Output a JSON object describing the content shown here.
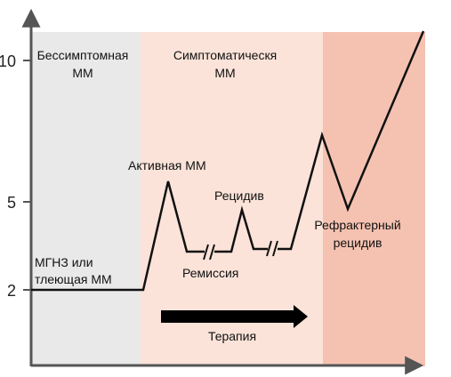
{
  "phases": [
    {
      "line1": "Бессимптомная",
      "line2": "ММ",
      "color": "#e9e9e9"
    },
    {
      "line1": "Симптоматическя",
      "line2": "ММ",
      "color": "#fbe3d9"
    },
    {
      "line1": "",
      "line2": "",
      "color": "#f5c2b1"
    }
  ],
  "y_ticks": [
    "10",
    "5",
    "2"
  ],
  "labels": {
    "mgus_line1": "МГНЗ или",
    "mgus_line2": "тлеющая ММ",
    "active": "Активная ММ",
    "remission": "Ремиссия",
    "relapse": "Рецидив",
    "refractory_line1": "Рефрактерный",
    "refractory_line2": "рецидив",
    "therapy": "Терапия"
  },
  "colors": {
    "axis": "#555555",
    "curve": "#111111",
    "arrow": "#000000"
  }
}
